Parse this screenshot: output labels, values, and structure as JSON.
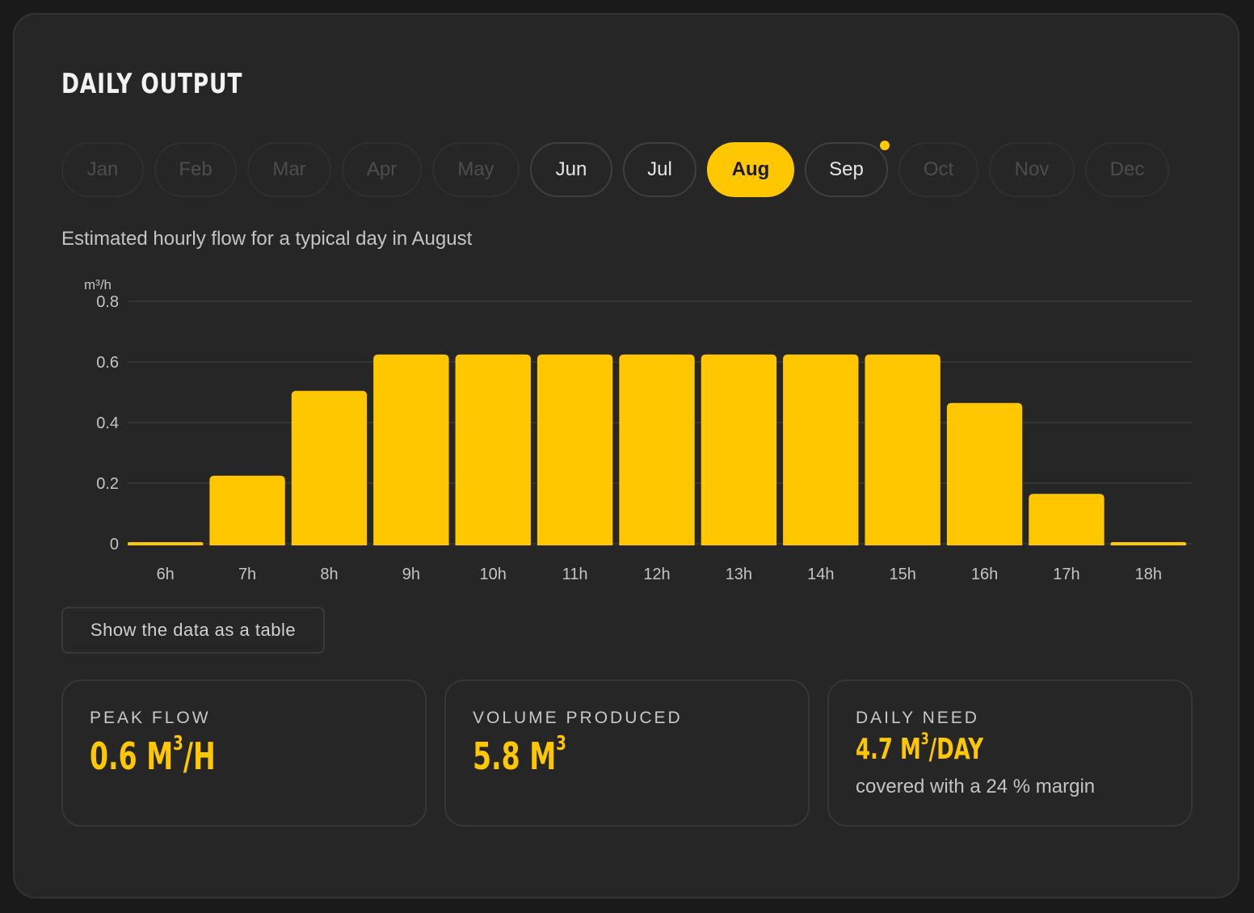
{
  "header": {
    "title": "DAILY OUTPUT"
  },
  "months": [
    {
      "label": "Jan",
      "state": "disabled"
    },
    {
      "label": "Feb",
      "state": "disabled"
    },
    {
      "label": "Mar",
      "state": "disabled"
    },
    {
      "label": "Apr",
      "state": "disabled"
    },
    {
      "label": "May",
      "state": "disabled"
    },
    {
      "label": "Jun",
      "state": "active"
    },
    {
      "label": "Jul",
      "state": "active"
    },
    {
      "label": "Aug",
      "state": "selected"
    },
    {
      "label": "Sep",
      "state": "active",
      "indicator": true
    },
    {
      "label": "Oct",
      "state": "disabled"
    },
    {
      "label": "Nov",
      "state": "disabled"
    },
    {
      "label": "Dec",
      "state": "disabled"
    }
  ],
  "subtitle": "Estimated hourly flow for a typical day in August",
  "chart_data": {
    "type": "bar",
    "title": "",
    "xlabel": "",
    "ylabel": "m³/h",
    "ylim": [
      0,
      0.8
    ],
    "yticks": [
      0,
      0.2,
      0.4,
      0.6,
      0.8
    ],
    "ytick_labels": [
      "0",
      "0.2",
      "0.4",
      "0.6",
      "0.8"
    ],
    "grid": true,
    "categories": [
      "6h",
      "7h",
      "8h",
      "9h",
      "10h",
      "11h",
      "12h",
      "13h",
      "14h",
      "15h",
      "16h",
      "17h",
      "18h"
    ],
    "values": [
      0.01,
      0.23,
      0.51,
      0.63,
      0.63,
      0.63,
      0.63,
      0.63,
      0.63,
      0.63,
      0.47,
      0.17,
      0.01
    ]
  },
  "table_toggle": {
    "label": "Show the data as a table"
  },
  "stats": {
    "peak": {
      "label": "PEAK FLOW",
      "value": "0.6 M",
      "sup": "3",
      "unit": "/H"
    },
    "volume": {
      "label": "VOLUME PRODUCED",
      "value": "5.8 M",
      "sup": "3"
    },
    "need": {
      "label": "DAILY NEED",
      "value": "4.7 M",
      "sup": "3",
      "unit": "/DAY",
      "note": "covered with a 24 % margin"
    }
  },
  "colors": {
    "accent": "#ffc700",
    "background": "#262626",
    "grid": "#3a3a3a",
    "text_muted": "#c4c4c4"
  }
}
